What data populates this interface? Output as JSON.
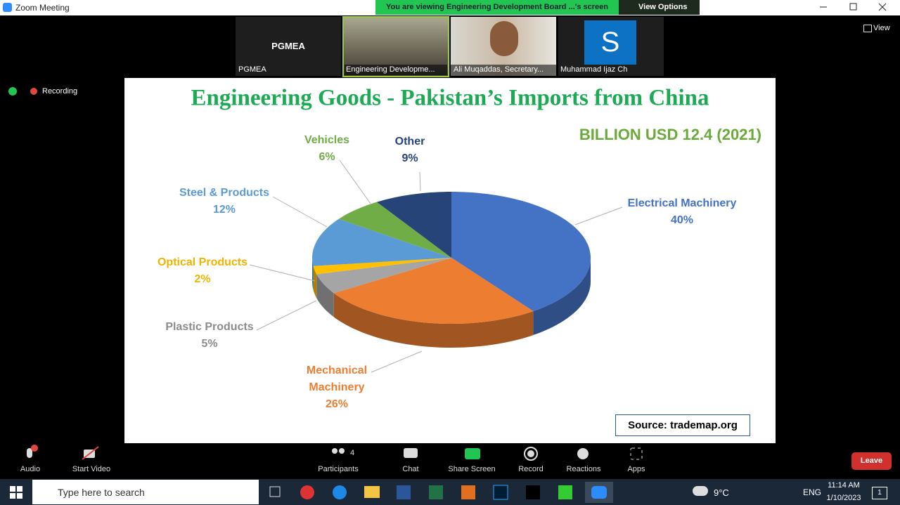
{
  "window": {
    "title": "Zoom Meeting"
  },
  "banner": {
    "text": "You are viewing Engineering Development Board ...'s screen",
    "view_options": "View Options"
  },
  "view_button": "View",
  "participants": [
    {
      "tile_label": "PGMEA",
      "name": "PGMEA"
    },
    {
      "name": "Engineering Developme..."
    },
    {
      "name": "Ali Muqaddas, Secretary..."
    },
    {
      "avatar": "S",
      "name": "Muhammad Ijaz Ch"
    }
  ],
  "recording": "Recording",
  "chart_data": {
    "type": "pie",
    "title": "Engineering Goods - Pakistan’s Imports from China",
    "subtitle": "BILLION USD 12.4 (2021)",
    "categories": [
      "Electrical Machinery",
      "Mechanical Machinery",
      "Plastic Products",
      "Optical Products",
      "Steel & Products",
      "Vehicles",
      "Other"
    ],
    "values": [
      40,
      26,
      5,
      2,
      12,
      6,
      9
    ],
    "value_labels": [
      "40%",
      "26%",
      "5%",
      "2%",
      "12%",
      "6%",
      "9%"
    ],
    "colors": [
      "#4472c4",
      "#ed7d31",
      "#a5a5a5",
      "#ffc000",
      "#5b9bd5",
      "#70ad47",
      "#264478"
    ],
    "source": "Source: trademap.org"
  },
  "toolbar": {
    "items": [
      "Audio",
      "Start Video",
      "Participants",
      "Chat",
      "Share Screen",
      "Record",
      "Reactions",
      "Apps"
    ],
    "participant_count": 4,
    "leave": "Leave"
  },
  "taskbar": {
    "search": "Type here to search",
    "weather": "9°C",
    "language": "ENG",
    "time": "11:14 AM",
    "date": "1/10/2023",
    "notifications": 1
  }
}
